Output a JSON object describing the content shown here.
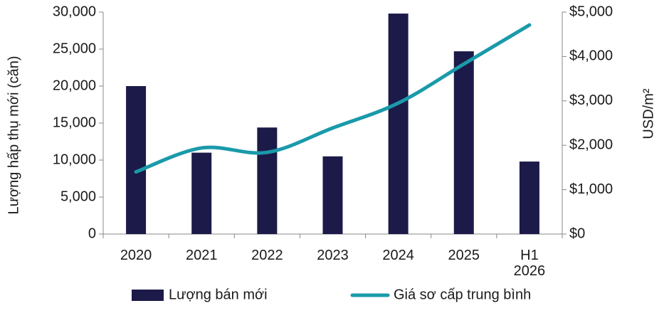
{
  "chart_data": {
    "type": "bar_line",
    "categories": [
      "2020",
      "2021",
      "2022",
      "2023",
      "2024",
      "2025",
      "H1 2026"
    ],
    "series": [
      {
        "name": "Lượng bán mới",
        "type": "bar",
        "color": "#1c1a48",
        "values": [
          20000,
          11000,
          14400,
          10500,
          29800,
          24700,
          9800
        ]
      },
      {
        "name": "Giá sơ cấp trung bình",
        "type": "line",
        "axis": "y2",
        "color": "#1a9aaa",
        "values": [
          1400,
          1940,
          1840,
          2390,
          2950,
          3830,
          4710
        ]
      }
    ],
    "y_label": "Lượng hấp thụ mới (căn)",
    "y2_label": "USD/m²",
    "ylim": [
      0,
      30000
    ],
    "yticks": [
      0,
      {
        "value": 5000,
        "label": "5,000"
      },
      {
        "value": 10000,
        "label": "10,000"
      },
      {
        "value": 15000,
        "label": "15,000"
      },
      {
        "value": 20000,
        "label": "20,000"
      },
      {
        "value": 25000,
        "label": "25,000"
      },
      {
        "value": 30000,
        "label": "30,000"
      }
    ],
    "y2lim": [
      0,
      5000
    ],
    "y2ticks": [
      {
        "value": 0,
        "label": "$0"
      },
      {
        "value": 1000,
        "label": "$1,000"
      },
      {
        "value": 2000,
        "label": "$2,000"
      },
      {
        "value": 3000,
        "label": "$3,000"
      },
      {
        "value": 4000,
        "label": "$4,000"
      },
      {
        "value": 5000,
        "label": "$5,000"
      }
    ],
    "grid": false,
    "legend": "bottom"
  }
}
